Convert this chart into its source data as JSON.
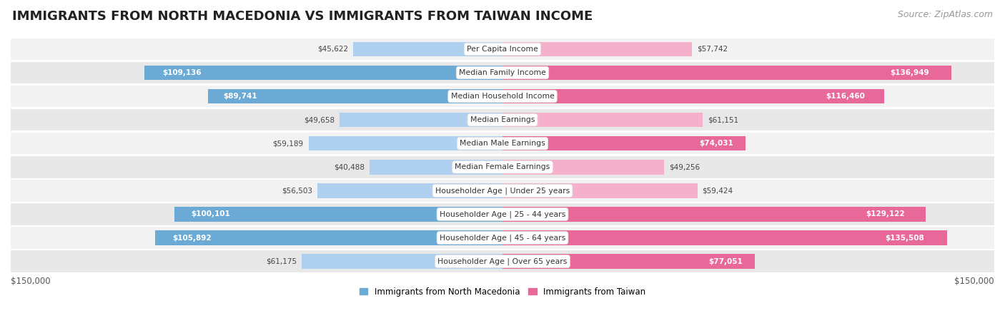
{
  "title": "IMMIGRANTS FROM NORTH MACEDONIA VS IMMIGRANTS FROM TAIWAN INCOME",
  "source": "Source: ZipAtlas.com",
  "categories": [
    "Per Capita Income",
    "Median Family Income",
    "Median Household Income",
    "Median Earnings",
    "Median Male Earnings",
    "Median Female Earnings",
    "Householder Age | Under 25 years",
    "Householder Age | 25 - 44 years",
    "Householder Age | 45 - 64 years",
    "Householder Age | Over 65 years"
  ],
  "macedonia_values": [
    45622,
    109136,
    89741,
    49658,
    59189,
    40488,
    56503,
    100101,
    105892,
    61175
  ],
  "taiwan_values": [
    57742,
    136949,
    116460,
    61151,
    74031,
    49256,
    59424,
    129122,
    135508,
    77051
  ],
  "macedonia_color_dark": "#6aaad4",
  "macedonia_color_light": "#afd0ef",
  "taiwan_color_dark": "#e8689a",
  "taiwan_color_light": "#f5b0cb",
  "max_val": 150000,
  "x_label_left": "$150,000",
  "x_label_right": "$150,000",
  "legend_macedonia": "Immigrants from North Macedonia",
  "legend_taiwan": "Immigrants from Taiwan",
  "row_bg_odd": "#f2f2f2",
  "row_bg_even": "#e8e8e8",
  "title_fontsize": 13,
  "source_fontsize": 9,
  "mac_threshold": 70000,
  "tai_threshold": 70000
}
